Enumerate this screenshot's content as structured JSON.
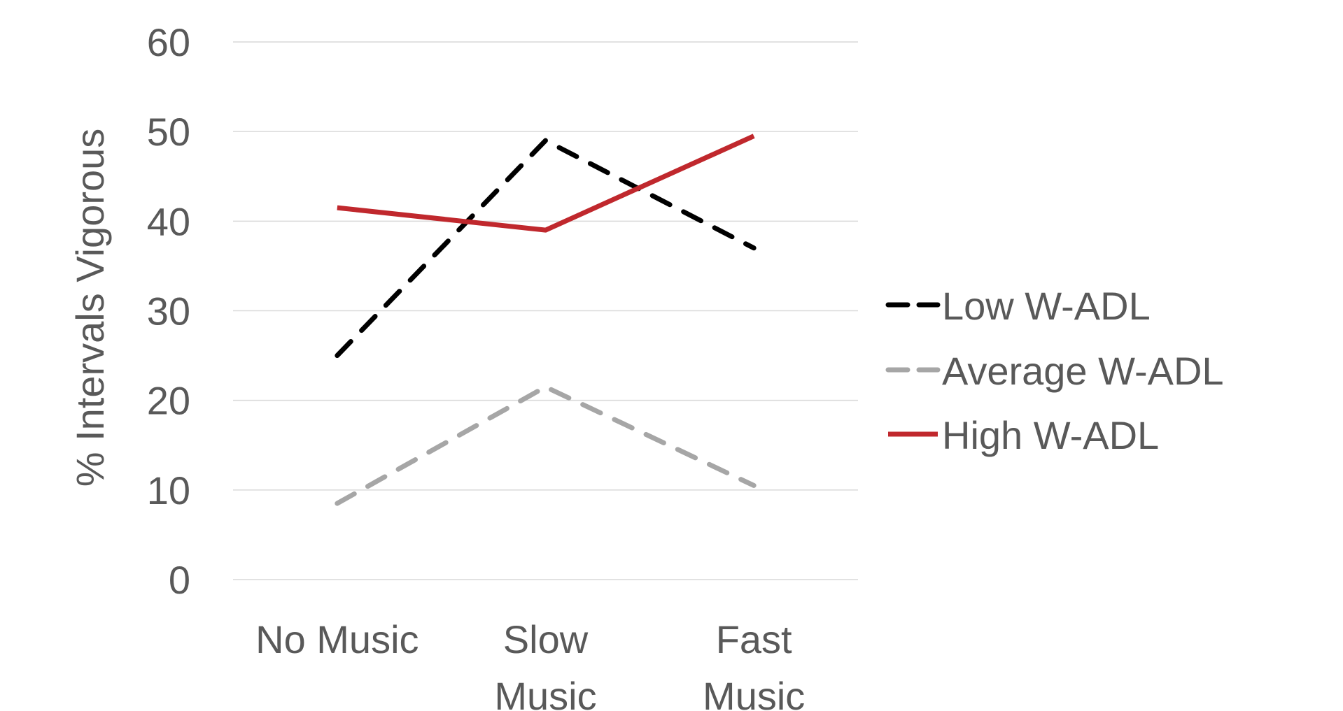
{
  "chart_data": {
    "type": "line",
    "title": "",
    "ylabel": "% Intervals Vigorous",
    "xlabel": "",
    "ylim": [
      0,
      60
    ],
    "yticks": [
      "0",
      "10",
      "20",
      "30",
      "40",
      "50",
      "60"
    ],
    "categories": [
      [
        "No Music"
      ],
      [
        "Slow",
        "Music"
      ],
      [
        "Fast",
        "Music"
      ]
    ],
    "grid": true,
    "legend_position": "right",
    "series": [
      {
        "name": "Low W-ADL",
        "values": [
          25,
          49,
          37
        ],
        "color": "#000000",
        "dash": "dashed"
      },
      {
        "name": "Average W-ADL",
        "values": [
          8.5,
          21.5,
          10.5
        ],
        "color": "#a6a6a6",
        "dash": "dashed"
      },
      {
        "name": "High W-ADL",
        "values": [
          41.5,
          39,
          49.5
        ],
        "color": "#c0282d",
        "dash": "solid"
      }
    ]
  }
}
